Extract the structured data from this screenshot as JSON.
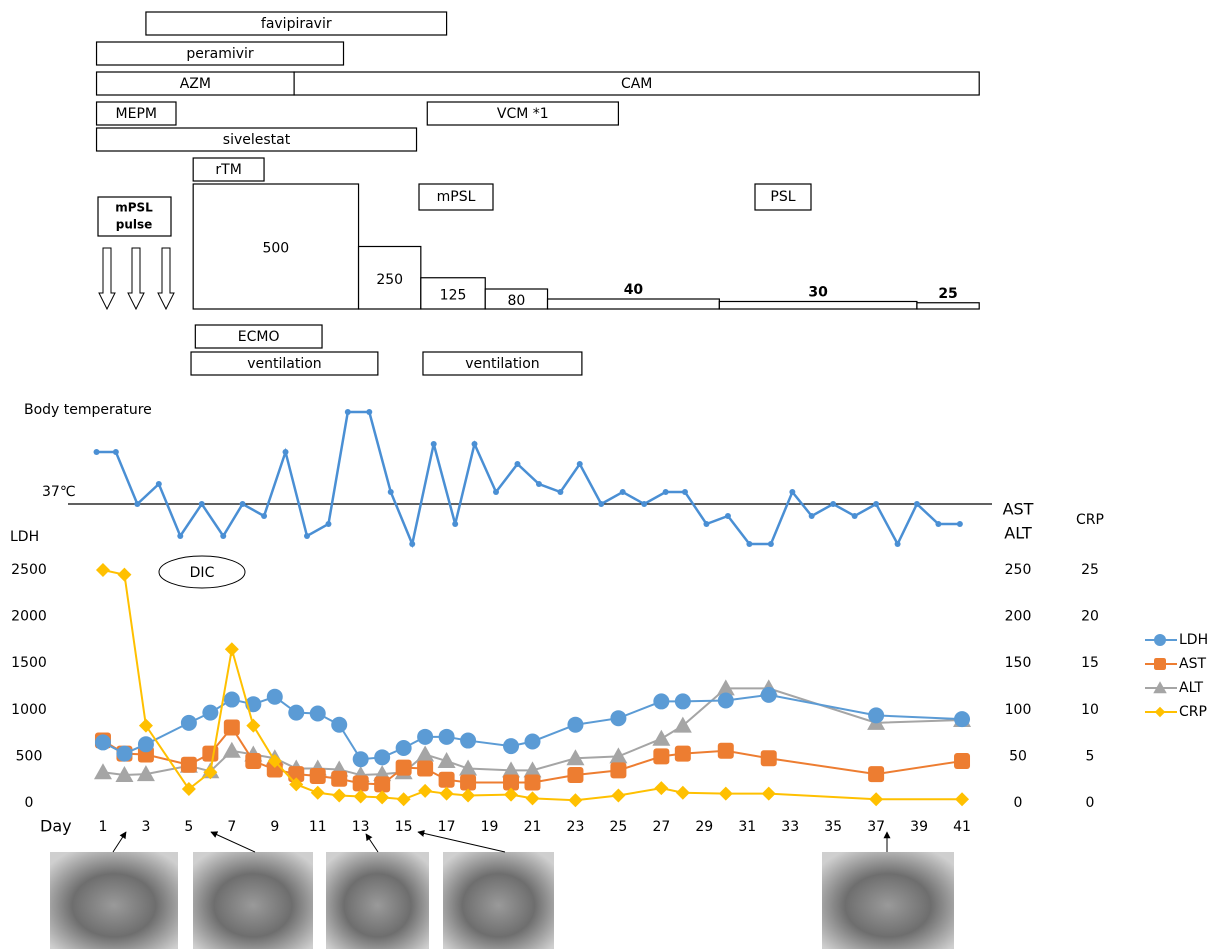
{
  "chart_data": [
    {
      "type": "gantt",
      "xlim": [
        0,
        42
      ],
      "tasks": [
        {
          "label": "favipiravir",
          "start": 3,
          "end": 17
        },
        {
          "label": "peramivir",
          "start": 0.7,
          "end": 12.2
        },
        {
          "label": "AZM",
          "start": 0.7,
          "end": 9.9
        },
        {
          "label": "CAM",
          "start": 9.9,
          "end": 41.8
        },
        {
          "label": "MEPM",
          "start": 0.7,
          "end": 4.4
        },
        {
          "label": "VCM *1",
          "start": 16.1,
          "end": 25
        },
        {
          "label": "sivelestat",
          "start": 0.7,
          "end": 15.6
        },
        {
          "label": "rTM",
          "start": 5.2,
          "end": 8.5
        },
        {
          "label": "ECMO",
          "start": 5.3,
          "end": 11.2
        },
        {
          "label": "ventilation",
          "start": 5.1,
          "end": 13.8
        },
        {
          "label": "ventilation",
          "start": 15.9,
          "end": 23.3
        }
      ]
    },
    {
      "type": "dose",
      "xlim": [
        0,
        42
      ],
      "ylim": [
        0,
        500
      ],
      "pulse_label": [
        "mPSL",
        "pulse"
      ],
      "labels": [
        "mPSL",
        "PSL"
      ],
      "blocks": [
        {
          "start": 5.2,
          "end": 12.9,
          "value": 500
        },
        {
          "start": 12.9,
          "end": 15.8,
          "value": 250
        },
        {
          "start": 15.8,
          "end": 18.8,
          "value": 125
        },
        {
          "start": 18.8,
          "end": 21.7,
          "value": 80
        },
        {
          "start": 21.7,
          "end": 29.7,
          "value": 40
        },
        {
          "start": 29.7,
          "end": 38.9,
          "value": 30
        },
        {
          "start": 38.9,
          "end": 41.8,
          "value": 25
        }
      ]
    },
    {
      "type": "line",
      "title": "Body temperature",
      "xlim": [
        0,
        42
      ],
      "ylim": [
        35.5,
        39.5
      ],
      "color": "#4a8fd4",
      "reference": {
        "value": 37,
        "label": "37℃"
      },
      "x": [
        0.7,
        1.6,
        2.6,
        3.6,
        4.6,
        5.6,
        6.6,
        7.5,
        8.5,
        9.5,
        10.5,
        11.5,
        12.4,
        13.4,
        14.4,
        15.4,
        16.4,
        17.4,
        18.3,
        19.3,
        20.3,
        21.3,
        22.3,
        23.2,
        24.2,
        25.2,
        26.2,
        27.2,
        28.1,
        29.1,
        30.1,
        31.1,
        32.1,
        33.1,
        34.0,
        35.0,
        36.0,
        37.0,
        38.0,
        38.9,
        39.9,
        40.9
      ],
      "values": [
        38.3,
        38.3,
        37.0,
        37.5,
        36.2,
        37.0,
        36.2,
        37.0,
        36.7,
        38.3,
        36.2,
        36.5,
        39.3,
        39.3,
        37.3,
        36.0,
        38.5,
        36.5,
        38.5,
        37.3,
        38.0,
        37.5,
        37.3,
        38.0,
        37.0,
        37.3,
        37.0,
        37.3,
        37.3,
        36.5,
        36.7,
        36.0,
        36.0,
        37.3,
        36.7,
        37.0,
        36.7,
        37.0,
        36.0,
        37.0,
        36.5,
        36.5
      ]
    },
    {
      "type": "multi-axis-line",
      "x_label": "Day",
      "y_label": "LDH",
      "y2_label": [
        "AST",
        "ALT"
      ],
      "y3_label": "CRP",
      "annotation": "DIC",
      "legend": "right",
      "xlim": [
        0,
        42
      ],
      "xticks": [
        1,
        3,
        5,
        7,
        9,
        11,
        13,
        15,
        17,
        19,
        21,
        23,
        25,
        27,
        29,
        31,
        33,
        35,
        37,
        39,
        41
      ],
      "ylim": [
        0,
        2500
      ],
      "yticks": [
        0,
        500,
        1000,
        1500,
        2000,
        2500
      ],
      "y2lim": [
        0,
        250
      ],
      "y2ticks": [
        0,
        50,
        100,
        150,
        200,
        250
      ],
      "y3lim": [
        0,
        25
      ],
      "y3ticks": [
        0,
        5,
        10,
        15,
        20,
        25
      ],
      "x": [
        1,
        2,
        3,
        5,
        6,
        7,
        8,
        9,
        10,
        11,
        12,
        13,
        14,
        15,
        16,
        17,
        18,
        20,
        21,
        23,
        25,
        27,
        28,
        30,
        32,
        37,
        41
      ],
      "series": [
        {
          "name": "LDH",
          "color": "#5b9bd5",
          "marker": "circle",
          "values": [
            650,
            530,
            630,
            860,
            970,
            1110,
            1060,
            1140,
            970,
            960,
            840,
            470,
            490,
            590,
            710,
            710,
            670,
            610,
            660,
            840,
            910,
            1090,
            1090,
            1100,
            1160,
            940,
            900
          ]
        },
        {
          "name": "AST",
          "color": "#ed7d31",
          "marker": "square",
          "axis": "y2",
          "values": [
            67,
            53,
            52,
            41,
            53,
            81,
            45,
            36,
            31,
            29,
            26,
            21,
            20,
            38,
            37,
            25,
            22,
            22,
            22,
            30,
            35,
            50,
            53,
            56,
            48,
            31,
            45
          ]
        },
        {
          "name": "ALT",
          "color": "#a5a5a5",
          "marker": "triangle",
          "axis": "y2",
          "values": [
            33,
            30,
            31,
            40,
            34,
            56,
            52,
            48,
            37,
            37,
            36,
            30,
            31,
            33,
            52,
            45,
            37,
            35,
            35,
            48,
            50,
            69,
            83,
            123,
            123,
            86,
            89
          ]
        },
        {
          "name": "CRP",
          "color": "#ffc000",
          "marker": "diamond",
          "axis": "y3",
          "values": [
            25,
            24.5,
            8.3,
            1.5,
            3.3,
            16.5,
            8.3,
            4.5,
            2,
            1.1,
            0.8,
            0.7,
            0.6,
            0.4,
            1.3,
            1,
            0.8,
            0.9,
            0.5,
            0.3,
            0.8,
            1.6,
            1.1,
            1,
            1,
            0.4,
            0.4
          ]
        }
      ]
    }
  ]
}
